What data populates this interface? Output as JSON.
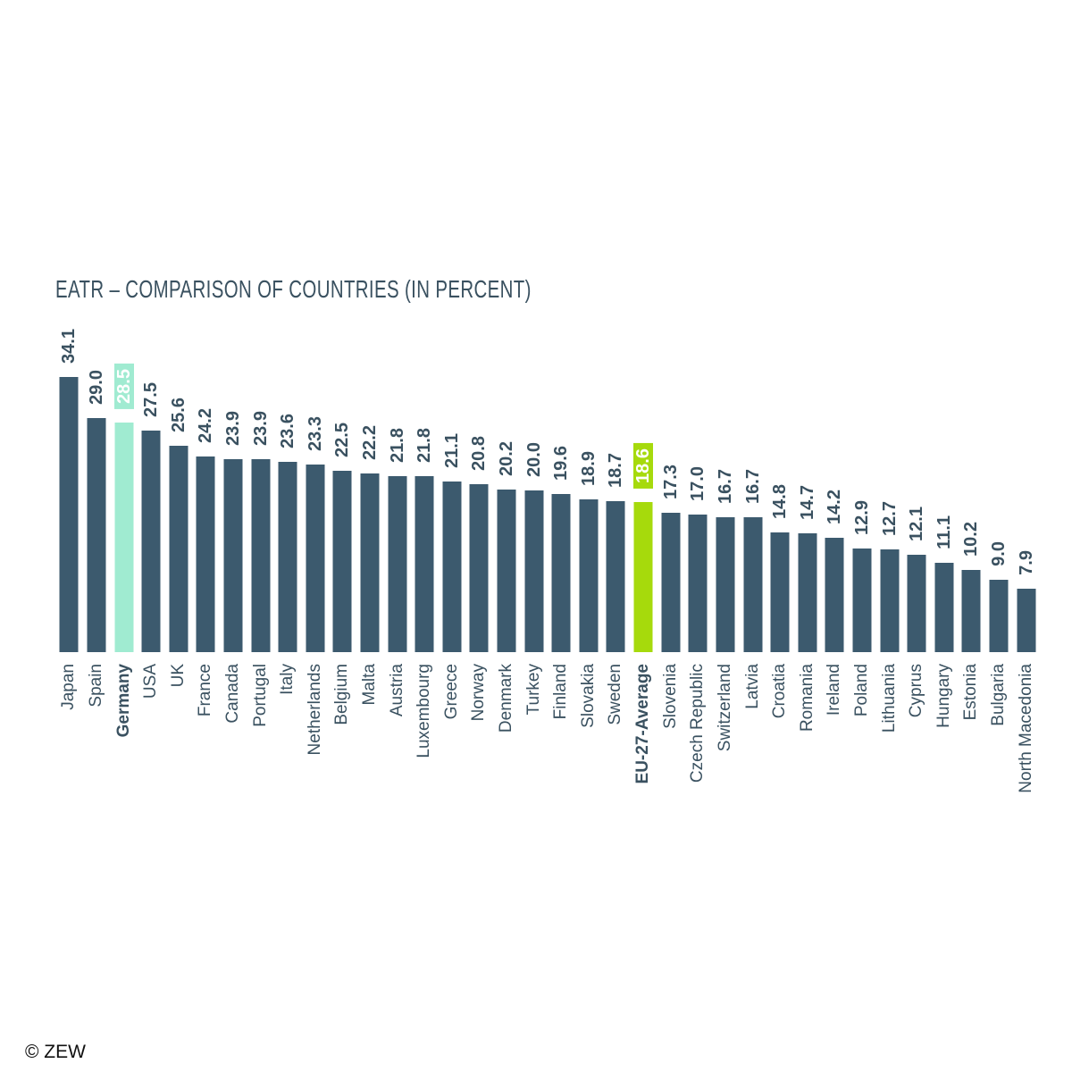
{
  "title": "EATR – COMPARISON OF COUNTRIES (IN PERCENT)",
  "footer": {
    "credit": "© ZEW"
  },
  "colors": {
    "bar": "#3c5a6e",
    "text": "#3a5160",
    "highlight_mint": "#a0ebd1",
    "highlight_lime": "#a6da0c",
    "highlight_value_text": "#ffffff"
  },
  "chart_data": {
    "type": "bar",
    "title": "EATR – COMPARISON OF COUNTRIES (IN PERCENT)",
    "xlabel": "",
    "ylabel": "",
    "ylim": [
      0,
      35
    ],
    "grid": false,
    "legend": false,
    "orientation": "vertical-bars-rotated-labels",
    "categories": [
      "Japan",
      "Spain",
      "Germany",
      "USA",
      "UK",
      "France",
      "Canada",
      "Portugal",
      "Italy",
      "Netherlands",
      "Belgium",
      "Malta",
      "Austria",
      "Luxembourg",
      "Greece",
      "Norway",
      "Denmark",
      "Turkey",
      "Finland",
      "Slovakia",
      "Sweden",
      "EU-27-Average",
      "Slovenia",
      "Czech Republic",
      "Switzerland",
      "Latvia",
      "Croatia",
      "Romania",
      "Ireland",
      "Poland",
      "Lithuania",
      "Cyprus",
      "Hungary",
      "Estonia",
      "Bulgaria",
      "North Macedonia"
    ],
    "values": [
      34.1,
      29.0,
      28.5,
      27.5,
      25.6,
      24.2,
      23.9,
      23.9,
      23.6,
      23.3,
      22.5,
      22.2,
      21.8,
      21.8,
      21.1,
      20.8,
      20.2,
      20.0,
      19.6,
      18.9,
      18.7,
      18.6,
      17.3,
      17.0,
      16.7,
      16.7,
      14.8,
      14.7,
      14.2,
      12.9,
      12.7,
      12.1,
      11.1,
      10.2,
      9.0,
      7.9
    ],
    "value_labels": [
      "34.1",
      "29.0",
      "28.5",
      "27.5",
      "25.6",
      "24.2",
      "23.9",
      "23.9",
      "23.6",
      "23.3",
      "22.5",
      "22.2",
      "21.8",
      "21.8",
      "21.1",
      "20.8",
      "20.2",
      "20.0",
      "19.6",
      "18.9",
      "18.7",
      "18.6",
      "17.3",
      "17.0",
      "16.7",
      "16.7",
      "14.8",
      "14.7",
      "14.2",
      "12.9",
      "12.7",
      "12.1",
      "11.1",
      "10.2",
      "9.0",
      "7.9"
    ],
    "highlights": {
      "Germany": "mint",
      "EU-27-Average": "lime"
    },
    "bold_categories": [
      "Germany",
      "EU-27-Average"
    ]
  }
}
